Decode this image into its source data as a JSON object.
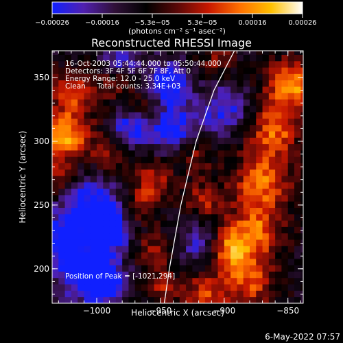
{
  "chart_data": {
    "type": "heatmap",
    "title": "Reconstructed RHESSI Image",
    "xlabel": "Heliocentric X (arcsec)",
    "ylabel": "Heliocentric Y (arcsec)",
    "xlim": [
      -1035,
      -838
    ],
    "ylim": [
      173,
      371
    ],
    "xticks": [
      -1000,
      -950,
      -900,
      -850
    ],
    "xtick_labels": [
      "−1000",
      "−950",
      "−900",
      "−850"
    ],
    "yticks": [
      200,
      250,
      300,
      350
    ],
    "ytick_labels": [
      "200",
      "250",
      "300",
      "350"
    ],
    "colorbar": {
      "range": [
        -0.00026,
        0.00026
      ],
      "tick_labels": [
        "−0.00026",
        "−0.00016",
        "−5.3e−05",
        "5.3e−05",
        "0.00016",
        "0.00026"
      ],
      "units": "(photons cm⁻² s⁻¹ asec⁻²)",
      "colors": [
        "#1020ff",
        "#5020b0",
        "#301038",
        "#000000",
        "#5a0808",
        "#c81800",
        "#ff7000",
        "#ffc000",
        "#ffffff"
      ]
    },
    "annotations": [
      "16-Oct-2003 05:44:44.000 to 05:50:44.000",
      "Detectors: 3F 4F 5F 6F 7F 8F, Att 0",
      "Energy Range: 12.0 - 25.0 keV",
      "Clean     Total counts: 3.34E+03"
    ],
    "peak_label": "Position of Peak = [-1021,294]",
    "limb_curve_x": [
      -947,
      -943,
      -934,
      -922,
      -908,
      -892
    ],
    "limb_curve_y": [
      173,
      200,
      250,
      300,
      340,
      371
    ],
    "blobs": [
      {
        "x": -1025,
        "y": 305,
        "v": 0.00026,
        "r": 14
      },
      {
        "x": -1018,
        "y": 340,
        "v": 0.00018,
        "r": 12
      },
      {
        "x": -1030,
        "y": 270,
        "v": 0.00012,
        "r": 10
      },
      {
        "x": -990,
        "y": 290,
        "v": 0.00012,
        "r": 10
      },
      {
        "x": -985,
        "y": 345,
        "v": 0.0001,
        "r": 10
      },
      {
        "x": -960,
        "y": 330,
        "v": 0.00011,
        "r": 9
      },
      {
        "x": -955,
        "y": 270,
        "v": 0.00014,
        "r": 12
      },
      {
        "x": -965,
        "y": 250,
        "v": 0.0001,
        "r": 10
      },
      {
        "x": -955,
        "y": 215,
        "v": 0.00012,
        "r": 10
      },
      {
        "x": -948,
        "y": 185,
        "v": 0.00013,
        "r": 10
      },
      {
        "x": -922,
        "y": 290,
        "v": 0.00012,
        "r": 10
      },
      {
        "x": -915,
        "y": 255,
        "v": 0.00014,
        "r": 10
      },
      {
        "x": -905,
        "y": 365,
        "v": 0.0001,
        "r": 10
      },
      {
        "x": -915,
        "y": 180,
        "v": 0.00016,
        "r": 12
      },
      {
        "x": -880,
        "y": 190,
        "v": 0.00018,
        "r": 14
      },
      {
        "x": -875,
        "y": 230,
        "v": 0.0002,
        "r": 15
      },
      {
        "x": -870,
        "y": 270,
        "v": 0.00022,
        "r": 16
      },
      {
        "x": -860,
        "y": 310,
        "v": 0.0002,
        "r": 14
      },
      {
        "x": -848,
        "y": 345,
        "v": 0.00026,
        "r": 13
      },
      {
        "x": -895,
        "y": 215,
        "v": 0.00019,
        "r": 12
      },
      {
        "x": -1005,
        "y": 250,
        "v": -0.0002,
        "r": 16
      },
      {
        "x": -1010,
        "y": 200,
        "v": -0.00022,
        "r": 16
      },
      {
        "x": -990,
        "y": 230,
        "v": -0.00026,
        "r": 10
      },
      {
        "x": -995,
        "y": 190,
        "v": -0.00024,
        "r": 10
      },
      {
        "x": -940,
        "y": 310,
        "v": -0.00018,
        "r": 14
      },
      {
        "x": -945,
        "y": 345,
        "v": -0.0002,
        "r": 12
      },
      {
        "x": -975,
        "y": 310,
        "v": -0.00016,
        "r": 10
      },
      {
        "x": -900,
        "y": 325,
        "v": -0.00016,
        "r": 12
      },
      {
        "x": -920,
        "y": 220,
        "v": -0.00014,
        "r": 10
      },
      {
        "x": -980,
        "y": 365,
        "v": -0.00014,
        "r": 10
      },
      {
        "x": -1030,
        "y": 225,
        "v": -0.00016,
        "r": 12
      }
    ]
  },
  "footer": {
    "date": "6-May-2022 07:57"
  }
}
